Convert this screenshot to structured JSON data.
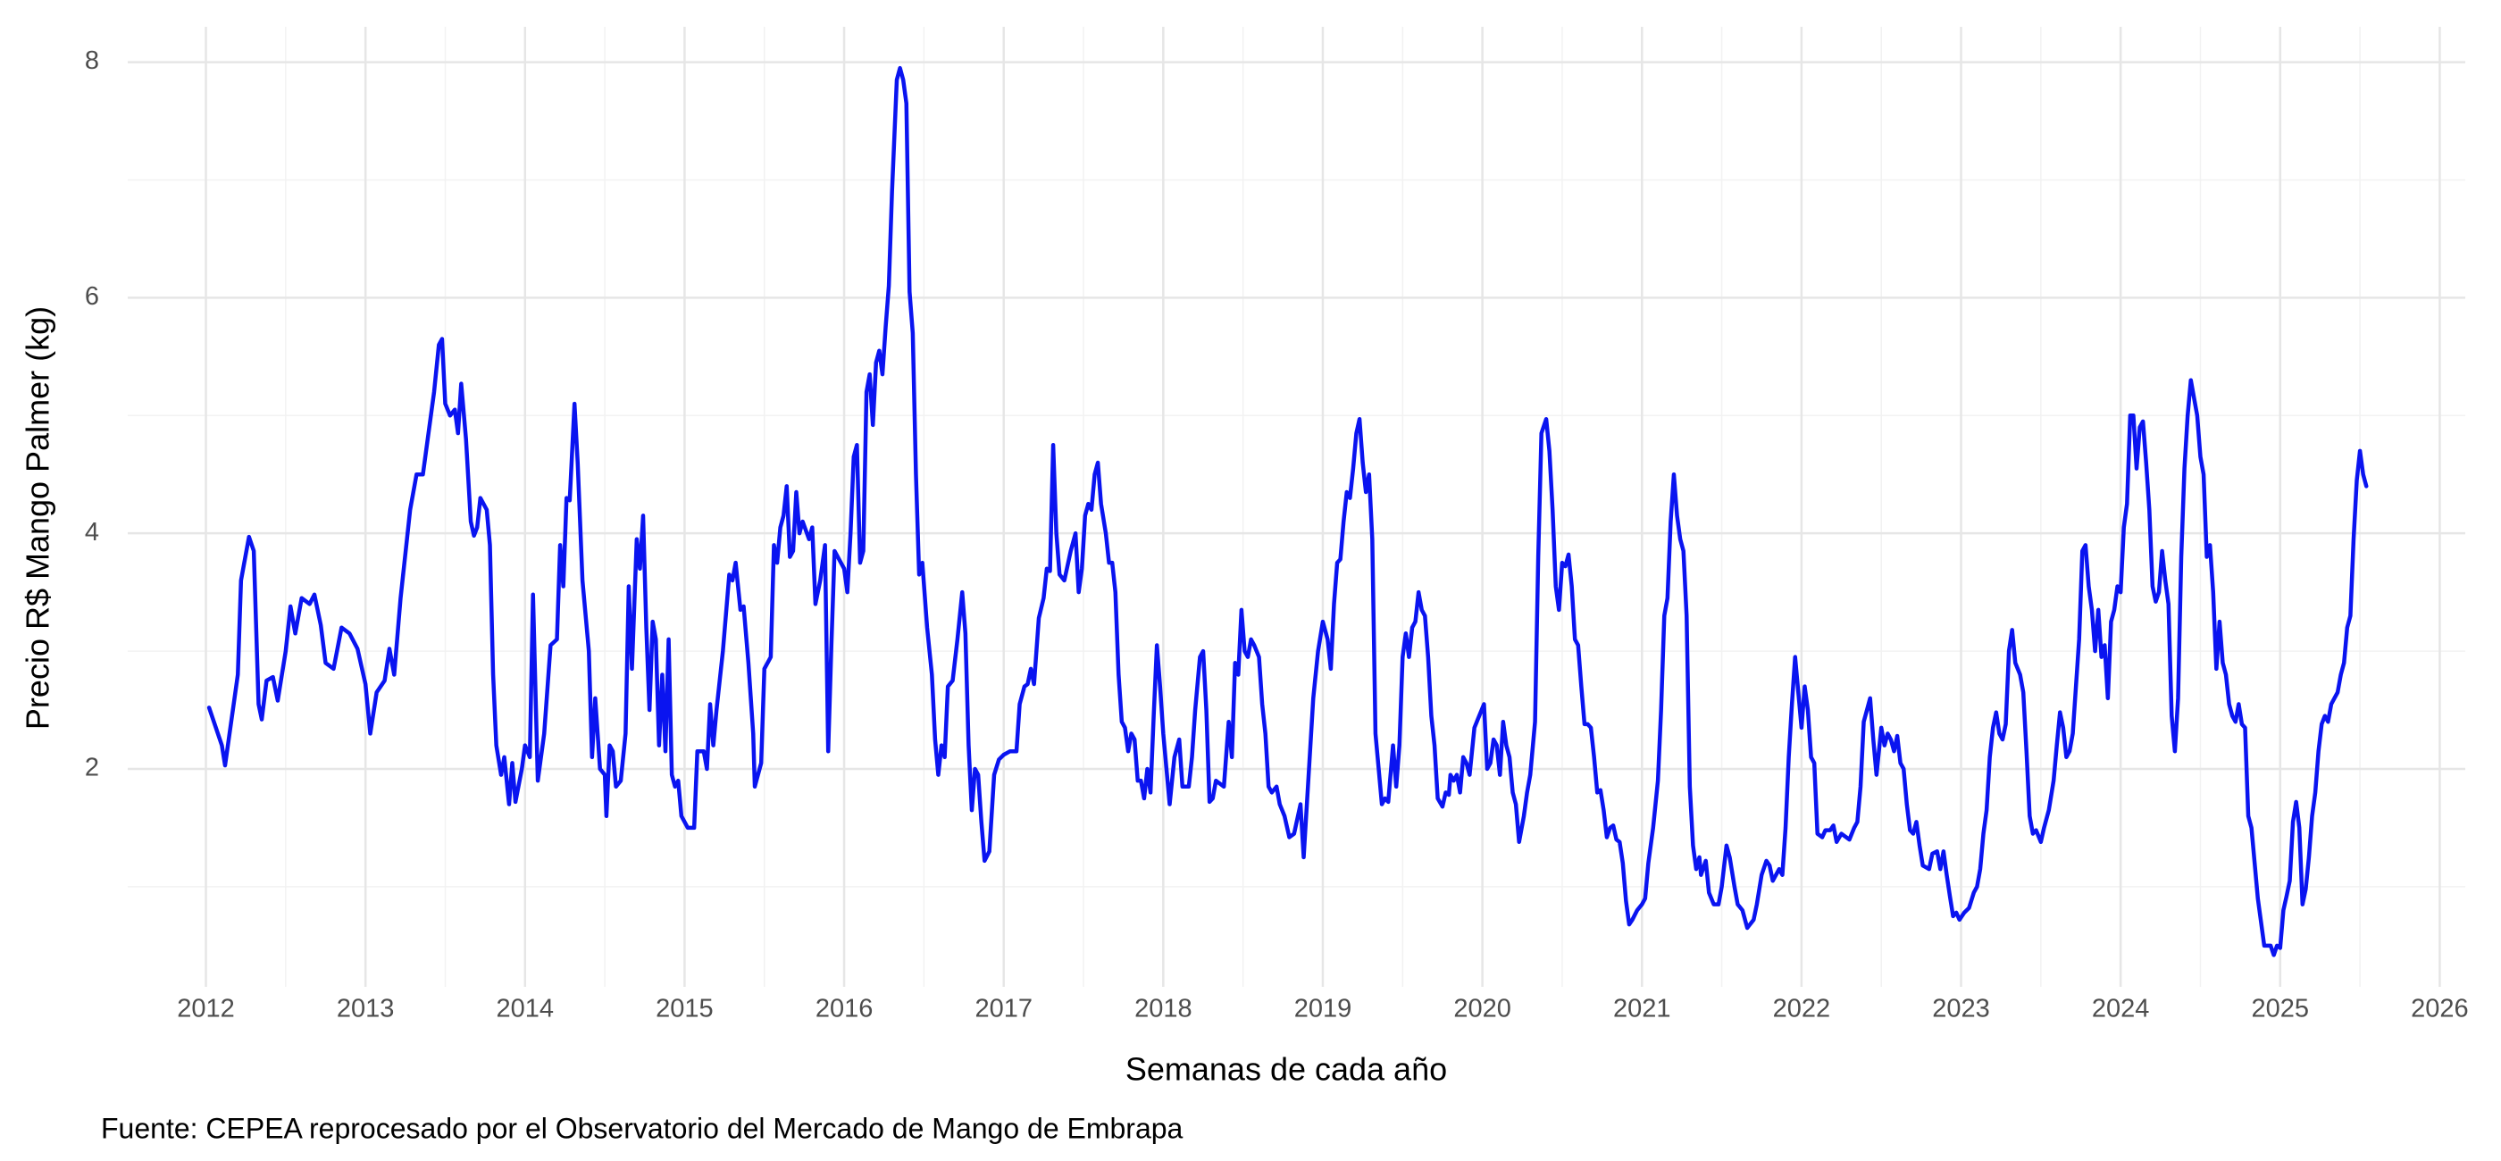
{
  "chart_data": {
    "type": "line",
    "y_label": "Precio R$ Mango Palmer (kg)",
    "x_label": "Semanas de cada año",
    "caption": "Fuente: CEPEA reprocesado por el Observatorio del Mercado de Mango de Embrapa",
    "color": "#0a14f0",
    "grid": true,
    "minor_grid": true,
    "xlim": [
      2011.51,
      2026.16
    ],
    "xticks": [
      2012,
      2013,
      2014,
      2015,
      2016,
      2017,
      2018,
      2019,
      2020,
      2021,
      2022,
      2023,
      2024,
      2025,
      2026
    ],
    "ylim": [
      0.15,
      8.3
    ],
    "yticks": [
      2,
      4,
      6,
      8
    ],
    "x": [
      2012.02,
      2012.1,
      2012.12,
      2012.2,
      2012.22,
      2012.27,
      2012.3,
      2012.33,
      2012.35,
      2012.38,
      2012.42,
      2012.45,
      2012.5,
      2012.53,
      2012.56,
      2012.6,
      2012.65,
      2012.68,
      2012.72,
      2012.75,
      2012.8,
      2012.85,
      2012.9,
      2012.95,
      2013.0,
      2013.03,
      2013.07,
      2013.12,
      2013.15,
      2013.18,
      2013.22,
      2013.28,
      2013.32,
      2013.36,
      2013.4,
      2013.43,
      2013.46,
      2013.48,
      2013.5,
      2013.53,
      2013.56,
      2013.58,
      2013.6,
      2013.63,
      2013.66,
      2013.68,
      2013.7,
      2013.72,
      2013.76,
      2013.78,
      2013.8,
      2013.82,
      2013.85,
      2013.87,
      2013.9,
      2013.92,
      2013.94,
      2013.98,
      2014.0,
      2014.03,
      2014.05,
      2014.08,
      2014.12,
      2014.16,
      2014.2,
      2014.22,
      2014.24,
      2014.26,
      2014.28,
      2014.31,
      2014.33,
      2014.36,
      2014.4,
      2014.42,
      2014.44,
      2014.47,
      2014.5,
      2014.51,
      2014.53,
      2014.55,
      2014.57,
      2014.6,
      2014.63,
      2014.65,
      2014.67,
      2014.7,
      2014.72,
      2014.74,
      2014.76,
      2014.78,
      2014.8,
      2014.82,
      2014.84,
      2014.86,
      2014.88,
      2014.9,
      2014.92,
      2014.94,
      2014.96,
      2014.98,
      2015.02,
      2015.06,
      2015.08,
      2015.12,
      2015.14,
      2015.16,
      2015.18,
      2015.2,
      2015.24,
      2015.28,
      2015.3,
      2015.32,
      2015.35,
      2015.37,
      2015.4,
      2015.43,
      2015.44,
      2015.48,
      2015.5,
      2015.54,
      2015.56,
      2015.58,
      2015.6,
      2015.62,
      2015.64,
      2015.66,
      2015.68,
      2015.7,
      2015.72,
      2015.74,
      2015.78,
      2015.8,
      2015.82,
      2015.85,
      2015.88,
      2015.9,
      2015.92,
      2015.94,
      2015.98,
      2016.0,
      2016.02,
      2016.04,
      2016.06,
      2016.08,
      2016.1,
      2016.12,
      2016.14,
      2016.16,
      2016.18,
      2016.2,
      2016.22,
      2016.24,
      2016.26,
      2016.28,
      2016.3,
      2016.33,
      2016.35,
      2016.37,
      2016.39,
      2016.41,
      2016.43,
      2016.45,
      2016.47,
      2016.49,
      2016.52,
      2016.55,
      2016.57,
      2016.59,
      2016.61,
      2016.63,
      2016.65,
      2016.68,
      2016.71,
      2016.74,
      2016.76,
      2016.78,
      2016.8,
      2016.82,
      2016.84,
      2016.86,
      2016.88,
      2016.91,
      2016.94,
      2016.97,
      2017.0,
      2017.04,
      2017.08,
      2017.1,
      2017.13,
      2017.15,
      2017.17,
      2017.19,
      2017.22,
      2017.25,
      2017.27,
      2017.29,
      2017.31,
      2017.33,
      2017.35,
      2017.38,
      2017.42,
      2017.45,
      2017.47,
      2017.49,
      2017.51,
      2017.53,
      2017.55,
      2017.57,
      2017.59,
      2017.61,
      2017.64,
      2017.66,
      2017.68,
      2017.7,
      2017.72,
      2017.74,
      2017.76,
      2017.78,
      2017.8,
      2017.82,
      2017.84,
      2017.86,
      2017.88,
      2017.9,
      2017.92,
      2017.94,
      2017.96,
      2017.98,
      2018.0,
      2018.04,
      2018.07,
      2018.1,
      2018.12,
      2018.16,
      2018.18,
      2018.2,
      2018.23,
      2018.25,
      2018.27,
      2018.29,
      2018.31,
      2018.33,
      2018.38,
      2018.41,
      2018.43,
      2018.45,
      2018.47,
      2018.49,
      2018.51,
      2018.53,
      2018.55,
      2018.57,
      2018.6,
      2018.62,
      2018.64,
      2018.66,
      2018.68,
      2018.71,
      2018.73,
      2018.76,
      2018.79,
      2018.82,
      2018.86,
      2018.88,
      2018.9,
      2018.94,
      2018.97,
      2019.0,
      2019.03,
      2019.05,
      2019.07,
      2019.09,
      2019.11,
      2019.13,
      2019.15,
      2019.17,
      2019.19,
      2019.21,
      2019.23,
      2019.25,
      2019.27,
      2019.29,
      2019.31,
      2019.33,
      2019.35,
      2019.37,
      2019.39,
      2019.41,
      2019.44,
      2019.46,
      2019.48,
      2019.5,
      2019.52,
      2019.54,
      2019.56,
      2019.58,
      2019.6,
      2019.62,
      2019.64,
      2019.66,
      2019.68,
      2019.7,
      2019.72,
      2019.75,
      2019.77,
      2019.79,
      2019.8,
      2019.82,
      2019.84,
      2019.86,
      2019.88,
      2019.9,
      2019.92,
      2019.95,
      2019.98,
      2020.01,
      2020.03,
      2020.05,
      2020.07,
      2020.09,
      2020.11,
      2020.13,
      2020.15,
      2020.17,
      2020.19,
      2020.21,
      2020.23,
      2020.26,
      2020.28,
      2020.3,
      2020.33,
      2020.35,
      2020.37,
      2020.4,
      2020.42,
      2020.44,
      2020.46,
      2020.48,
      2020.5,
      2020.52,
      2020.54,
      2020.56,
      2020.58,
      2020.6,
      2020.62,
      2020.64,
      2020.66,
      2020.68,
      2020.7,
      2020.72,
      2020.74,
      2020.76,
      2020.78,
      2020.8,
      2020.82,
      2020.84,
      2020.86,
      2020.88,
      2020.9,
      2020.92,
      2020.94,
      2020.97,
      2021.0,
      2021.02,
      2021.04,
      2021.07,
      2021.1,
      2021.12,
      2021.14,
      2021.16,
      2021.18,
      2021.2,
      2021.22,
      2021.24,
      2021.26,
      2021.28,
      2021.3,
      2021.32,
      2021.34,
      2021.36,
      2021.37,
      2021.4,
      2021.42,
      2021.45,
      2021.48,
      2021.5,
      2021.53,
      2021.55,
      2021.58,
      2021.6,
      2021.63,
      2021.66,
      2021.7,
      2021.72,
      2021.75,
      2021.78,
      2021.8,
      2021.82,
      2021.84,
      2021.86,
      2021.88,
      2021.9,
      2021.92,
      2021.94,
      2021.96,
      2021.98,
      2022.0,
      2022.02,
      2022.04,
      2022.06,
      2022.08,
      2022.1,
      2022.13,
      2022.15,
      2022.18,
      2022.2,
      2022.22,
      2022.25,
      2022.3,
      2022.33,
      2022.35,
      2022.37,
      2022.39,
      2022.41,
      2022.43,
      2022.45,
      2022.47,
      2022.5,
      2022.52,
      2022.54,
      2022.56,
      2022.58,
      2022.6,
      2022.62,
      2022.64,
      2022.66,
      2022.68,
      2022.7,
      2022.72,
      2022.74,
      2022.76,
      2022.8,
      2022.82,
      2022.85,
      2022.87,
      2022.89,
      2022.91,
      2022.93,
      2022.95,
      2022.97,
      2022.99,
      2023.02,
      2023.05,
      2023.08,
      2023.1,
      2023.12,
      2023.14,
      2023.16,
      2023.18,
      2023.2,
      2023.22,
      2023.24,
      2023.26,
      2023.28,
      2023.3,
      2023.32,
      2023.34,
      2023.37,
      2023.39,
      2023.41,
      2023.43,
      2023.45,
      2023.47,
      2023.5,
      2023.52,
      2023.55,
      2023.58,
      2023.6,
      2023.62,
      2023.64,
      2023.66,
      2023.68,
      2023.7,
      2023.72,
      2023.74,
      2023.76,
      2023.78,
      2023.8,
      2023.82,
      2023.84,
      2023.86,
      2023.88,
      2023.9,
      2023.92,
      2023.94,
      2023.96,
      2023.98,
      2024.0,
      2024.02,
      2024.04,
      2024.06,
      2024.08,
      2024.1,
      2024.12,
      2024.14,
      2024.16,
      2024.18,
      2024.2,
      2024.22,
      2024.24,
      2024.26,
      2024.28,
      2024.3,
      2024.32,
      2024.34,
      2024.36,
      2024.38,
      2024.4,
      2024.42,
      2024.44,
      2024.46,
      2024.48,
      2024.5,
      2024.52,
      2024.54,
      2024.56,
      2024.58,
      2024.6,
      2024.62,
      2024.64,
      2024.66,
      2024.68,
      2024.7,
      2024.72,
      2024.74,
      2024.76,
      2024.78,
      2024.8,
      2024.82,
      2024.84,
      2024.86,
      2024.88,
      2024.9,
      2024.92,
      2024.94,
      2024.96,
      2024.98,
      2025.0,
      2025.02,
      2025.04,
      2025.06,
      2025.08,
      2025.1,
      2025.12,
      2025.14,
      2025.16,
      2025.18,
      2025.2,
      2025.22,
      2025.24,
      2025.26,
      2025.28,
      2025.3,
      2025.32,
      2025.34,
      2025.36,
      2025.38,
      2025.4,
      2025.42,
      2025.44,
      2025.46,
      2025.48,
      2025.5,
      2025.52,
      2025.54
    ],
    "values": [
      2.52,
      2.2,
      2.03,
      2.8,
      3.6,
      3.97,
      3.85,
      2.55,
      2.42,
      2.75,
      2.78,
      2.58,
      3.0,
      3.38,
      3.15,
      3.45,
      3.4,
      3.48,
      3.22,
      2.9,
      2.85,
      3.2,
      3.15,
      3.02,
      2.72,
      2.3,
      2.65,
      2.75,
      3.02,
      2.8,
      3.45,
      4.2,
      4.5,
      4.5,
      4.9,
      5.2,
      5.6,
      5.65,
      5.1,
      5.0,
      5.05,
      4.85,
      5.27,
      4.8,
      4.1,
      3.98,
      4.05,
      4.3,
      4.2,
      3.9,
      2.8,
      2.2,
      1.95,
      2.1,
      1.7,
      2.05,
      1.72,
      2.0,
      2.2,
      2.1,
      3.48,
      1.9,
      2.3,
      3.05,
      3.1,
      3.9,
      3.55,
      4.3,
      4.28,
      5.1,
      4.6,
      3.6,
      3.0,
      2.1,
      2.6,
      2.0,
      1.95,
      1.6,
      2.2,
      2.15,
      1.85,
      1.9,
      2.3,
      3.55,
      2.85,
      3.95,
      3.7,
      4.15,
      3.2,
      2.5,
      3.25,
      3.1,
      2.2,
      2.8,
      2.15,
      3.1,
      1.95,
      1.85,
      1.9,
      1.6,
      1.5,
      1.5,
      2.15,
      2.15,
      2.0,
      2.55,
      2.2,
      2.5,
      3.0,
      3.65,
      3.6,
      3.75,
      3.35,
      3.38,
      2.9,
      2.3,
      1.85,
      2.05,
      2.85,
      2.95,
      3.9,
      3.75,
      4.05,
      4.15,
      4.4,
      3.8,
      3.85,
      4.35,
      4.0,
      4.1,
      3.95,
      4.05,
      3.4,
      3.6,
      3.9,
      2.15,
      3.05,
      3.85,
      3.75,
      3.7,
      3.5,
      4.0,
      4.65,
      4.75,
      3.75,
      3.85,
      5.2,
      5.35,
      4.92,
      5.45,
      5.55,
      5.35,
      5.75,
      6.1,
      6.9,
      7.85,
      7.95,
      7.85,
      7.65,
      6.05,
      5.7,
      4.5,
      3.65,
      3.75,
      3.2,
      2.8,
      2.25,
      1.95,
      2.2,
      2.1,
      2.7,
      2.75,
      3.1,
      3.5,
      3.15,
      2.2,
      1.65,
      2.0,
      1.95,
      1.55,
      1.22,
      1.3,
      1.95,
      2.08,
      2.12,
      2.15,
      2.15,
      2.55,
      2.7,
      2.72,
      2.85,
      2.72,
      3.28,
      3.45,
      3.7,
      3.68,
      4.75,
      4.0,
      3.65,
      3.6,
      3.85,
      4.0,
      3.5,
      3.7,
      4.15,
      4.25,
      4.2,
      4.5,
      4.6,
      4.25,
      4.0,
      3.75,
      3.75,
      3.5,
      2.8,
      2.4,
      2.35,
      2.15,
      2.3,
      2.25,
      1.9,
      1.9,
      1.75,
      2.0,
      1.8,
      2.45,
      3.05,
      2.7,
      2.3,
      1.7,
      2.1,
      2.25,
      1.85,
      1.85,
      2.1,
      2.5,
      2.95,
      3.0,
      2.5,
      1.72,
      1.75,
      1.9,
      1.85,
      2.4,
      2.1,
      2.9,
      2.8,
      3.35,
      3.0,
      2.95,
      3.1,
      3.05,
      2.95,
      2.55,
      2.3,
      1.85,
      1.8,
      1.85,
      1.7,
      1.6,
      1.42,
      1.45,
      1.7,
      1.25,
      1.7,
      2.6,
      3.0,
      3.25,
      3.1,
      2.85,
      3.4,
      3.75,
      3.78,
      4.1,
      4.35,
      4.3,
      4.55,
      4.85,
      4.97,
      4.6,
      4.35,
      4.5,
      3.95,
      2.3,
      2.0,
      1.7,
      1.75,
      1.72,
      2.2,
      1.85,
      2.2,
      2.95,
      3.15,
      2.95,
      3.2,
      3.25,
      3.5,
      3.35,
      3.3,
      2.95,
      2.45,
      2.2,
      1.75,
      1.68,
      1.8,
      1.78,
      1.95,
      1.9,
      1.95,
      1.8,
      2.1,
      2.05,
      1.95,
      2.35,
      2.45,
      2.55,
      2.0,
      2.05,
      2.25,
      2.2,
      1.95,
      2.4,
      2.2,
      2.1,
      1.8,
      1.7,
      1.38,
      1.6,
      1.8,
      1.95,
      2.4,
      3.8,
      4.85,
      4.97,
      4.7,
      4.2,
      3.55,
      3.35,
      3.75,
      3.72,
      3.82,
      3.55,
      3.1,
      3.05,
      2.7,
      2.38,
      2.38,
      2.35,
      2.1,
      1.8,
      1.82,
      1.65,
      1.42,
      1.5,
      1.52,
      1.4,
      1.38,
      1.2,
      0.88,
      0.68,
      0.72,
      0.8,
      0.85,
      0.9,
      1.2,
      1.5,
      1.9,
      2.5,
      3.3,
      3.45,
      4.1,
      4.5,
      4.15,
      3.95,
      3.85,
      3.3,
      1.85,
      1.35,
      1.15,
      1.25,
      1.1,
      1.22,
      0.95,
      0.85,
      0.85,
      1.0,
      1.35,
      1.25,
      1.0,
      0.85,
      0.8,
      0.65,
      0.72,
      0.85,
      1.1,
      1.22,
      1.18,
      1.05,
      1.1,
      1.15,
      1.1,
      1.5,
      2.1,
      2.55,
      2.95,
      2.65,
      2.35,
      2.7,
      2.5,
      2.1,
      2.05,
      1.45,
      1.42,
      1.48,
      1.48,
      1.52,
      1.38,
      1.45,
      1.4,
      1.5,
      1.55,
      1.85,
      2.4,
      2.5,
      2.6,
      2.25,
      1.95,
      2.35,
      2.2,
      2.3,
      2.25,
      2.15,
      2.28,
      2.05,
      2.0,
      1.7,
      1.48,
      1.45,
      1.55,
      1.35,
      1.18,
      1.15,
      1.28,
      1.3,
      1.15,
      1.3,
      1.1,
      0.92,
      0.75,
      0.78,
      0.72,
      0.78,
      0.82,
      0.95,
      1.0,
      1.15,
      1.45,
      1.65,
      2.1,
      2.35,
      2.48,
      2.3,
      2.25,
      2.38,
      3.0,
      3.18,
      2.9,
      2.8,
      2.65,
      2.15,
      1.6,
      1.45,
      1.48,
      1.38,
      1.5,
      1.65,
      1.9,
      2.2,
      2.48,
      2.35,
      2.1,
      2.15,
      2.3,
      2.7,
      3.1,
      3.85,
      3.9,
      3.55,
      3.35,
      3.0,
      3.35,
      2.95,
      3.05,
      2.6,
      3.25,
      3.35,
      3.55,
      3.5,
      4.05,
      4.25,
      5.0,
      5.0,
      4.55,
      4.9,
      4.95,
      4.6,
      4.2,
      3.55,
      3.42,
      3.5,
      3.85,
      3.6,
      3.4,
      2.45,
      2.15,
      2.6,
      3.8,
      4.55,
      5.0,
      5.3,
      5.15,
      5.0,
      4.65,
      4.5,
      3.8,
      3.9,
      3.5,
      2.85,
      3.25,
      2.9,
      2.8,
      2.55,
      2.45,
      2.4,
      2.55,
      2.38,
      2.35,
      1.6,
      1.5,
      1.2,
      0.9,
      0.7,
      0.5,
      0.5,
      0.5,
      0.42,
      0.5,
      0.48,
      0.8,
      0.92,
      1.05,
      1.55,
      1.72,
      1.5,
      0.85,
      0.98,
      1.25,
      1.6,
      1.8,
      2.15,
      2.38,
      2.45,
      2.4,
      2.55,
      2.6,
      2.65,
      2.8,
      2.9,
      3.2,
      3.3,
      3.95,
      4.45,
      4.7,
      4.5,
      4.4
    ]
  }
}
